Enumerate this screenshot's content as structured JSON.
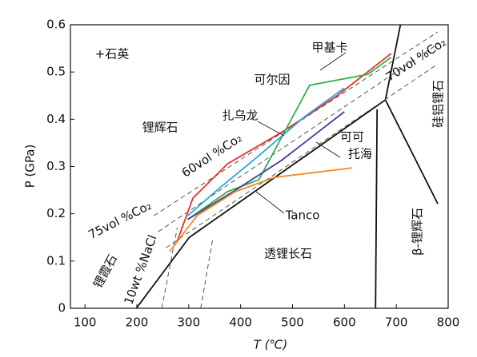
{
  "chart_data": {
    "type": "line",
    "x_label": "T (℃)",
    "y_label": "P (GPa)",
    "xlim": [
      72,
      800
    ],
    "ylim": [
      0,
      0.6
    ],
    "xticks": [
      100,
      200,
      300,
      400,
      500,
      600,
      700,
      800
    ],
    "yticks": [
      0,
      0.1,
      0.2,
      0.3,
      0.4,
      0.5,
      0.6
    ],
    "series": [
      {
        "color": "#111111",
        "dash": false,
        "x": [
          199,
          301,
          679,
          708
        ],
        "values": [
          0,
          0.15,
          0.441,
          0.6
        ]
      },
      {
        "color": "#111111",
        "dash": false,
        "x": [
          679,
          780
        ],
        "values": [
          0.441,
          0.221
        ]
      },
      {
        "color": "#111111",
        "dash": false,
        "x": [
          660,
          663
        ],
        "values": [
          0,
          0.421
        ]
      },
      {
        "color": "#555555",
        "dash": true,
        "x": [
          233,
          780
        ],
        "values": [
          0.196,
          0.585
        ]
      },
      {
        "color": "#555555",
        "dash": true,
        "x": [
          241,
          780
        ],
        "values": [
          0.162,
          0.559
        ]
      },
      {
        "color": "#555555",
        "dash": true,
        "x": [
          256,
          780
        ],
        "values": [
          0.128,
          0.517
        ]
      },
      {
        "color": "#555555",
        "dash": true,
        "x": [
          248,
          278
        ],
        "values": [
          0,
          0.171
        ]
      },
      {
        "color": "#555555",
        "dash": true,
        "x": [
          323,
          346
        ],
        "values": [
          0,
          0.145
        ]
      },
      {
        "color": "#e8302a",
        "dash": false,
        "x": [
          277,
          308,
          375,
          480,
          585,
          690
        ],
        "values": [
          0.14,
          0.233,
          0.306,
          0.373,
          0.449,
          0.539
        ]
      },
      {
        "color": "#2fb24a",
        "dash": false,
        "x": [
          298,
          375,
          435,
          533,
          645,
          690
        ],
        "values": [
          0.188,
          0.247,
          0.272,
          0.472,
          0.495,
          0.531
        ]
      },
      {
        "color": "#2aa7d8",
        "dash": false,
        "x": [
          298,
          360,
          435,
          525,
          600
        ],
        "values": [
          0.196,
          0.255,
          0.323,
          0.407,
          0.466
        ]
      },
      {
        "color": "#4a3a9c",
        "dash": false,
        "x": [
          298,
          390,
          480,
          600
        ],
        "values": [
          0.188,
          0.25,
          0.314,
          0.416
        ]
      },
      {
        "color": "#f08a24",
        "dash": false,
        "x": [
          263,
          316,
          390,
          465,
          615
        ],
        "values": [
          0.12,
          0.196,
          0.247,
          0.277,
          0.297
        ]
      }
    ],
    "annotations": [
      "+石英",
      "锂辉石",
      "甲基卡",
      "可尔因",
      "扎乌龙",
      "可可",
      "托海",
      "Tanco",
      "透锂长石",
      "锂霞石",
      "β-锂辉石",
      "硅铝锂石",
      "60vol %Co₂",
      "75vol %Co₂",
      "70vol %Co₂",
      "10wt %NaCl"
    ]
  }
}
